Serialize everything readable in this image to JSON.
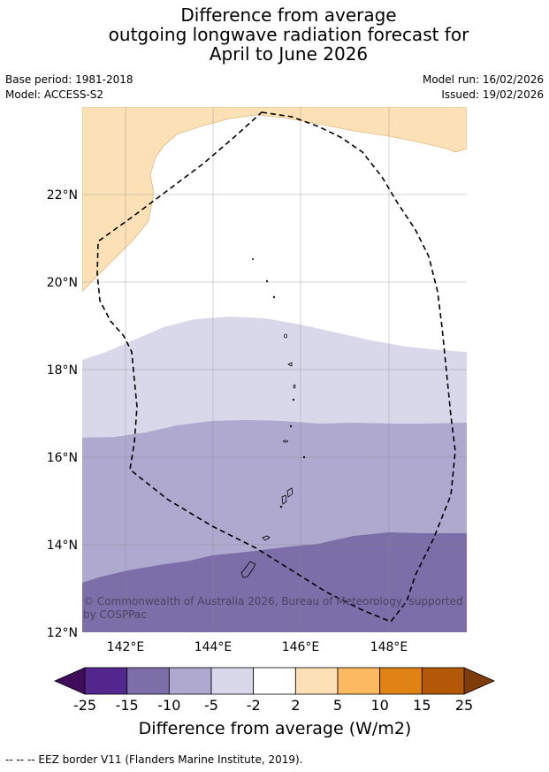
{
  "title": {
    "line1": "Difference from average",
    "line2": "outgoing longwave radiation forecast for",
    "line3": "April to June 2026"
  },
  "meta": {
    "base_period": "Base period: 1981-2018",
    "model": "Model: ACCESS-S2",
    "model_run": "Model run: 16/02/2026",
    "issued": "Issued: 19/02/2026"
  },
  "map": {
    "lat_labels": [
      "22°N",
      "20°N",
      "18°N",
      "16°N",
      "14°N",
      "12°N"
    ],
    "lon_labels": [
      "142°E",
      "144°E",
      "146°E",
      "148°E"
    ],
    "copyright": "© Commonwealth of Australia 2026, Bureau of Meteorology, supported by COSPPac"
  },
  "legend": {
    "ticks": [
      "-25",
      "-15",
      "-10",
      "-5",
      "-2",
      "2",
      "5",
      "10",
      "15",
      "25"
    ],
    "label": "Difference from average (W/m2)",
    "colors": [
      "#54278f",
      "#7c6ea8",
      "#afa8cf",
      "#d8d8ea",
      "#ffffff",
      "#fde1b6",
      "#fdb862",
      "#e08214",
      "#b35806"
    ],
    "extend_low_color": "#3f0d5c",
    "extend_high_color": "#7f3b08"
  },
  "footnote": "--  --  -- EEZ border V11 (Flanders Marine Institute, 2019)."
}
